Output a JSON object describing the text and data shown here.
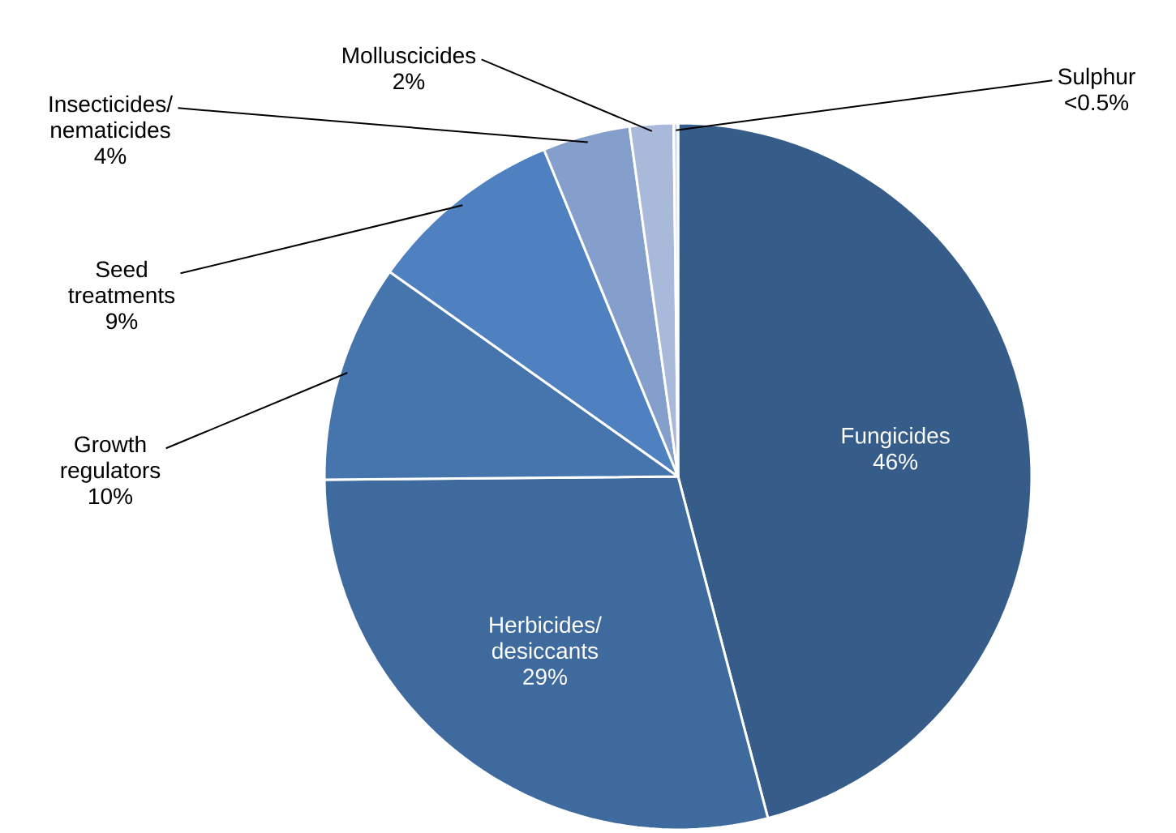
{
  "chart_data": {
    "type": "pie",
    "categories": [
      "Fungicides",
      "Herbicides/ desiccants",
      "Growth regulators",
      "Seed treatments",
      "Insecticides/ nematicides",
      "Molluscicides",
      "Sulphur"
    ],
    "values": [
      46,
      29,
      10,
      9,
      4,
      2,
      0.2
    ],
    "value_labels": [
      "46%",
      "29%",
      "10%",
      "9%",
      "4%",
      "2%",
      "<0.5%"
    ],
    "colors": [
      "#365d8a",
      "#3e6a9e",
      "#4675ae",
      "#4f81c0",
      "#849fcb",
      "#a9b9d9",
      "#cdd8ea"
    ]
  }
}
